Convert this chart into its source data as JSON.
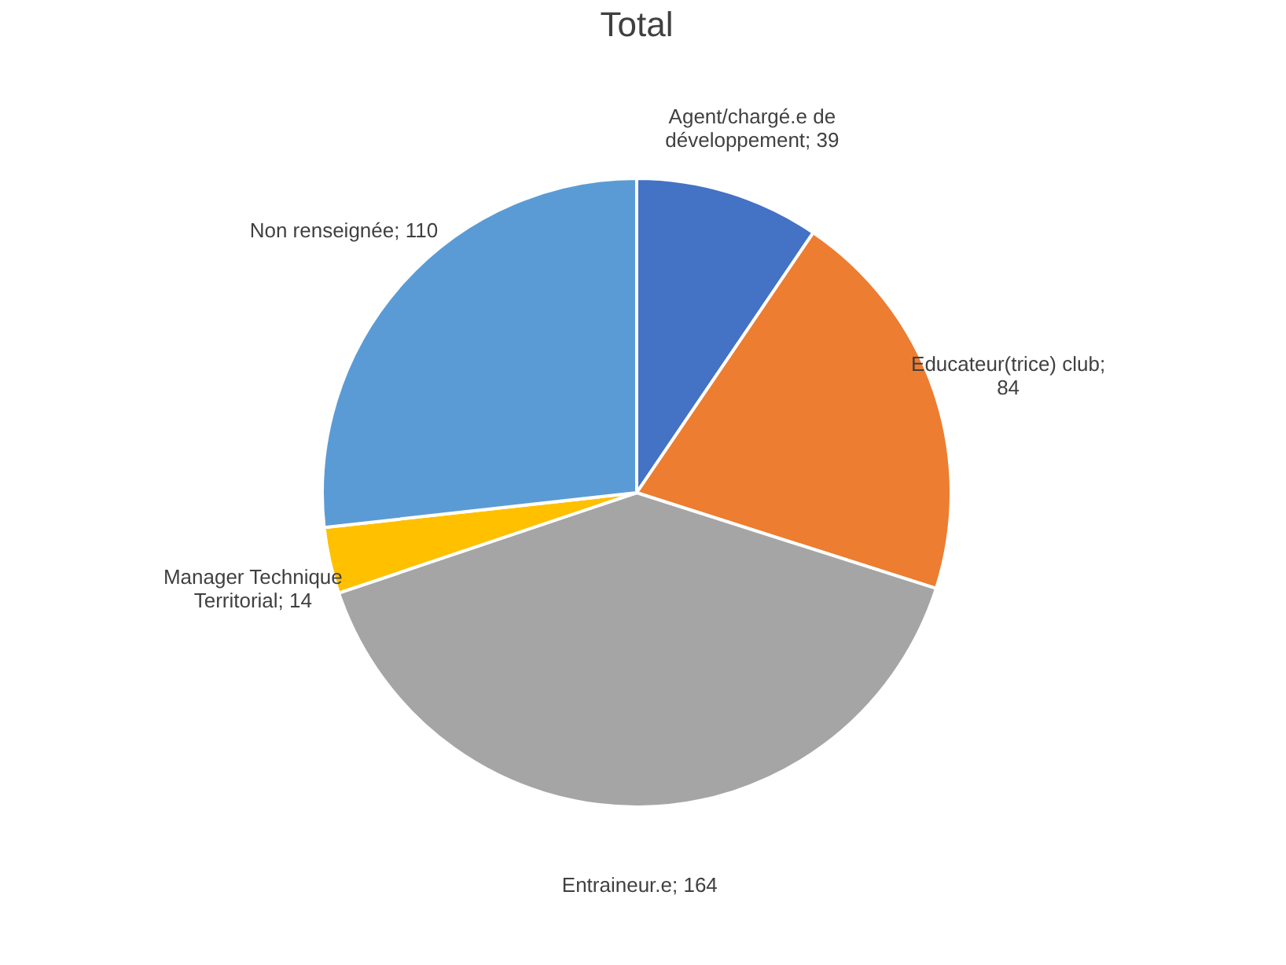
{
  "chart_data": {
    "type": "pie",
    "title": "Total",
    "categories": [
      "Agent/chargé.e de développement",
      "Educateur(trice) club",
      "Entraineur.e",
      "Manager Technique Territorial",
      "Non renseignée"
    ],
    "values": [
      39,
      84,
      164,
      14,
      110
    ],
    "colors": [
      "#4472c4",
      "#ed7d31",
      "#a5a5a5",
      "#ffc000",
      "#5b9bd5"
    ],
    "value_labels": [
      "; 39",
      "; 84",
      "; 164",
      "; 14",
      "; 110"
    ]
  }
}
